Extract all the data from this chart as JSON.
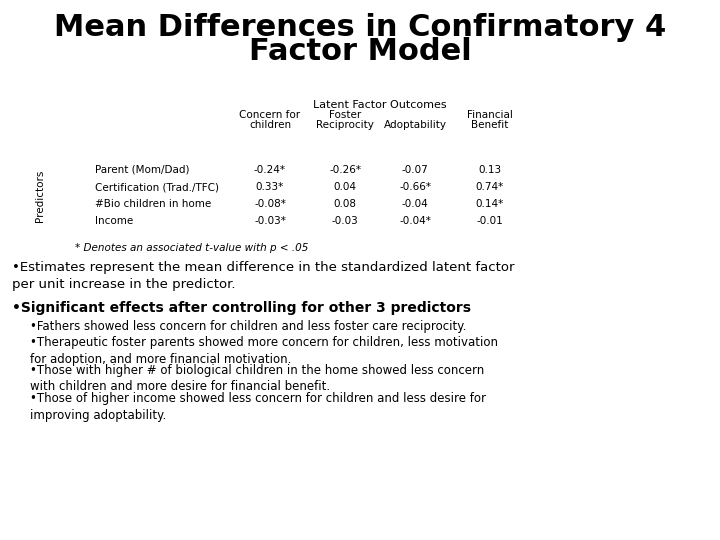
{
  "title_line1": "Mean Differences in Confirmatory 4",
  "title_line2": "Factor Model",
  "bg_color": "#ffffff",
  "table_header_span": "Latent Factor Outcomes",
  "col_headers_line1": [
    "Concern for",
    "Foster",
    "",
    "Financial"
  ],
  "col_headers_line2": [
    "children",
    "Reciprocity",
    "Adoptability",
    "Benefit"
  ],
  "row_label_header": "Predictors",
  "row_labels": [
    "Parent (Mom/Dad)",
    "Certification (Trad./TFC)",
    "#Bio children in home",
    "Income"
  ],
  "table_data": [
    [
      "-0.24*",
      "-0.26*",
      "-0.07",
      "0.13"
    ],
    [
      "0.33*",
      "0.04",
      "-0.66*",
      "0.74*"
    ],
    [
      "-0.08*",
      "0.08",
      "-0.04",
      "0.14*"
    ],
    [
      "-0.03*",
      "-0.03",
      "-0.04*",
      "-0.01"
    ]
  ],
  "footnote": "* Denotes an associated t-value with p < .05",
  "bullet1": "•Estimates represent the mean difference in the standardized latent factor\nper unit increase in the predictor.",
  "bullet2_bold": "•Significant effects after controlling for other 3 predictors",
  "sub_bullets": [
    "•Fathers showed less concern for children and less foster care reciprocity.",
    "•Therapeutic foster parents showed more concern for children, less motivation\nfor adoption, and more financial motivation.",
    "•Those with higher # of biological children in the home showed less concern\nwith children and more desire for financial benefit.",
    "•Those of higher income showed less concern for children and less desire for\nimproving adoptability."
  ]
}
